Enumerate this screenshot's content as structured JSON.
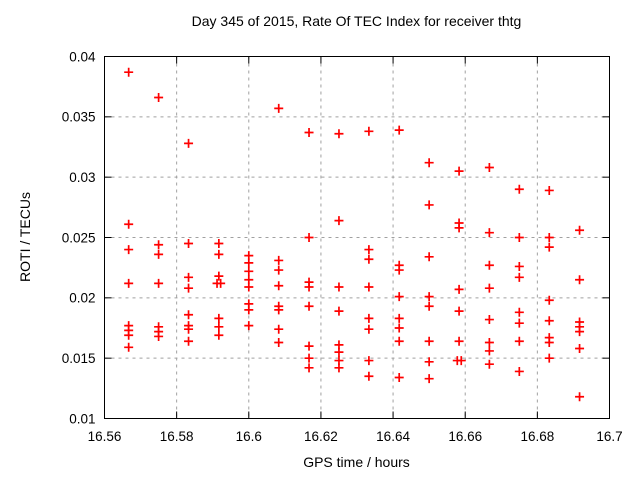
{
  "title": "Day 345 of 2015, Rate Of TEC Index for receiver thtg",
  "chart_data": {
    "type": "scatter",
    "title": "Day 345 of 2015, Rate Of TEC Index for receiver thtg",
    "xlabel": "GPS time / hours",
    "ylabel": "ROTI / TECUs",
    "xlim": [
      16.56,
      16.7
    ],
    "ylim": [
      0.01,
      0.04
    ],
    "xticks": [
      16.56,
      16.58,
      16.6,
      16.62,
      16.64,
      16.66,
      16.68,
      16.7
    ],
    "xtick_labels": [
      "16.56",
      "16.58",
      "16.6",
      "16.62",
      "16.64",
      "16.66",
      "16.68",
      "16.7"
    ],
    "yticks": [
      0.01,
      0.015,
      0.02,
      0.025,
      0.03,
      0.035,
      0.04
    ],
    "ytick_labels": [
      "0.01",
      "0.015",
      "0.02",
      "0.025",
      "0.03",
      "0.035",
      "0.04"
    ],
    "grid": true,
    "grid_color": "#a0a0a0",
    "legend": "none",
    "marker": "plus",
    "marker_color": "#ff0000",
    "axis_color": "#000000",
    "series": [
      {
        "name": "ROTI",
        "points": [
          [
            16.5667,
            0.0387
          ],
          [
            16.5667,
            0.0261
          ],
          [
            16.5667,
            0.024
          ],
          [
            16.5667,
            0.0212
          ],
          [
            16.5667,
            0.0177
          ],
          [
            16.5667,
            0.0173
          ],
          [
            16.5667,
            0.0169
          ],
          [
            16.5667,
            0.0159
          ],
          [
            16.575,
            0.0366
          ],
          [
            16.575,
            0.0244
          ],
          [
            16.575,
            0.0236
          ],
          [
            16.575,
            0.0212
          ],
          [
            16.575,
            0.0176
          ],
          [
            16.575,
            0.0172
          ],
          [
            16.575,
            0.0168
          ],
          [
            16.5833,
            0.0328
          ],
          [
            16.5833,
            0.0245
          ],
          [
            16.5833,
            0.0217
          ],
          [
            16.5833,
            0.0208
          ],
          [
            16.5833,
            0.0186
          ],
          [
            16.5833,
            0.0177
          ],
          [
            16.5833,
            0.0174
          ],
          [
            16.5833,
            0.0164
          ],
          [
            16.5917,
            0.0245
          ],
          [
            16.5917,
            0.0236
          ],
          [
            16.5917,
            0.0218
          ],
          [
            16.5912,
            0.0212
          ],
          [
            16.5922,
            0.0212
          ],
          [
            16.5917,
            0.0183
          ],
          [
            16.5917,
            0.0176
          ],
          [
            16.5917,
            0.0169
          ],
          [
            16.6,
            0.0235
          ],
          [
            16.6,
            0.0229
          ],
          [
            16.6,
            0.0222
          ],
          [
            16.6,
            0.0215
          ],
          [
            16.6,
            0.0209
          ],
          [
            16.6,
            0.0195
          ],
          [
            16.6,
            0.019
          ],
          [
            16.6,
            0.0177
          ],
          [
            16.6083,
            0.0357
          ],
          [
            16.6083,
            0.0231
          ],
          [
            16.6083,
            0.0223
          ],
          [
            16.6083,
            0.021
          ],
          [
            16.6083,
            0.0193
          ],
          [
            16.6083,
            0.019
          ],
          [
            16.6083,
            0.0174
          ],
          [
            16.6083,
            0.0163
          ],
          [
            16.6167,
            0.0337
          ],
          [
            16.6167,
            0.025
          ],
          [
            16.6167,
            0.0213
          ],
          [
            16.6167,
            0.0209
          ],
          [
            16.6167,
            0.0193
          ],
          [
            16.6167,
            0.016
          ],
          [
            16.6167,
            0.015
          ],
          [
            16.6167,
            0.0142
          ],
          [
            16.625,
            0.0336
          ],
          [
            16.625,
            0.0264
          ],
          [
            16.625,
            0.0209
          ],
          [
            16.625,
            0.0189
          ],
          [
            16.625,
            0.0161
          ],
          [
            16.625,
            0.0155
          ],
          [
            16.625,
            0.0148
          ],
          [
            16.625,
            0.0142
          ],
          [
            16.6333,
            0.0338
          ],
          [
            16.6333,
            0.024
          ],
          [
            16.6333,
            0.0232
          ],
          [
            16.6333,
            0.0209
          ],
          [
            16.6333,
            0.0183
          ],
          [
            16.6333,
            0.0174
          ],
          [
            16.6333,
            0.0148
          ],
          [
            16.6333,
            0.0135
          ],
          [
            16.6417,
            0.0339
          ],
          [
            16.6417,
            0.0227
          ],
          [
            16.6417,
            0.0223
          ],
          [
            16.6417,
            0.0201
          ],
          [
            16.6417,
            0.0183
          ],
          [
            16.6417,
            0.0175
          ],
          [
            16.6417,
            0.0164
          ],
          [
            16.6417,
            0.0134
          ],
          [
            16.65,
            0.0312
          ],
          [
            16.65,
            0.0277
          ],
          [
            16.65,
            0.0234
          ],
          [
            16.65,
            0.0201
          ],
          [
            16.65,
            0.0193
          ],
          [
            16.65,
            0.0164
          ],
          [
            16.65,
            0.0147
          ],
          [
            16.65,
            0.0133
          ],
          [
            16.6583,
            0.0305
          ],
          [
            16.6583,
            0.0262
          ],
          [
            16.6583,
            0.0258
          ],
          [
            16.6583,
            0.0207
          ],
          [
            16.6583,
            0.0189
          ],
          [
            16.6583,
            0.0164
          ],
          [
            16.6578,
            0.0148
          ],
          [
            16.6589,
            0.0148
          ],
          [
            16.6667,
            0.0308
          ],
          [
            16.6667,
            0.0254
          ],
          [
            16.6667,
            0.0227
          ],
          [
            16.6667,
            0.0208
          ],
          [
            16.6667,
            0.0182
          ],
          [
            16.6667,
            0.0163
          ],
          [
            16.6667,
            0.0156
          ],
          [
            16.6667,
            0.0145
          ],
          [
            16.675,
            0.029
          ],
          [
            16.675,
            0.025
          ],
          [
            16.675,
            0.0226
          ],
          [
            16.675,
            0.0217
          ],
          [
            16.675,
            0.0188
          ],
          [
            16.675,
            0.0179
          ],
          [
            16.675,
            0.0164
          ],
          [
            16.675,
            0.0139
          ],
          [
            16.6833,
            0.0289
          ],
          [
            16.6833,
            0.025
          ],
          [
            16.6833,
            0.0242
          ],
          [
            16.6833,
            0.0198
          ],
          [
            16.6833,
            0.0181
          ],
          [
            16.6833,
            0.0167
          ],
          [
            16.6833,
            0.0163
          ],
          [
            16.6833,
            0.015
          ],
          [
            16.6917,
            0.0256
          ],
          [
            16.6917,
            0.0215
          ],
          [
            16.6917,
            0.018
          ],
          [
            16.6917,
            0.0176
          ],
          [
            16.6917,
            0.0172
          ],
          [
            16.6917,
            0.0158
          ],
          [
            16.6917,
            0.0118
          ]
        ]
      }
    ]
  }
}
